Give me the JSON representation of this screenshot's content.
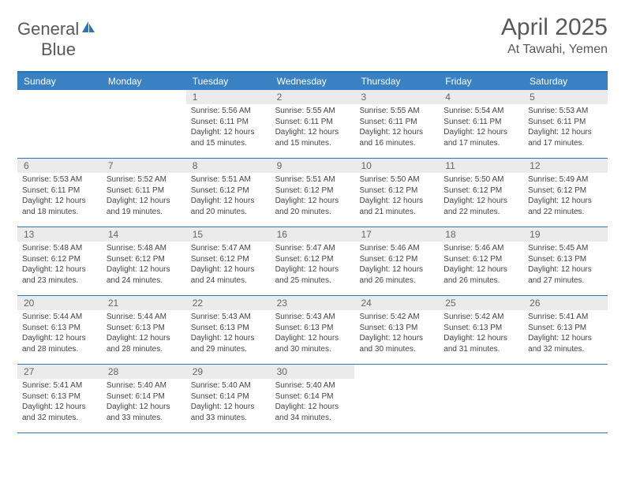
{
  "brand": {
    "text1": "General",
    "text2": "Blue",
    "accent": "#3a81c4",
    "gray": "#595959"
  },
  "title": "April 2025",
  "location": "At Tawahi, Yemen",
  "day_headers": [
    "Sunday",
    "Monday",
    "Tuesday",
    "Wednesday",
    "Thursday",
    "Friday",
    "Saturday"
  ],
  "header_bg": "#3a81c4",
  "border_color": "#2e75b6",
  "daynum_bg": "#ebebeb",
  "weeks": [
    [
      {
        "n": "",
        "lines": []
      },
      {
        "n": "",
        "lines": []
      },
      {
        "n": "1",
        "lines": [
          "Sunrise: 5:56 AM",
          "Sunset: 6:11 PM",
          "Daylight: 12 hours and 15 minutes."
        ]
      },
      {
        "n": "2",
        "lines": [
          "Sunrise: 5:55 AM",
          "Sunset: 6:11 PM",
          "Daylight: 12 hours and 15 minutes."
        ]
      },
      {
        "n": "3",
        "lines": [
          "Sunrise: 5:55 AM",
          "Sunset: 6:11 PM",
          "Daylight: 12 hours and 16 minutes."
        ]
      },
      {
        "n": "4",
        "lines": [
          "Sunrise: 5:54 AM",
          "Sunset: 6:11 PM",
          "Daylight: 12 hours and 17 minutes."
        ]
      },
      {
        "n": "5",
        "lines": [
          "Sunrise: 5:53 AM",
          "Sunset: 6:11 PM",
          "Daylight: 12 hours and 17 minutes."
        ]
      }
    ],
    [
      {
        "n": "6",
        "lines": [
          "Sunrise: 5:53 AM",
          "Sunset: 6:11 PM",
          "Daylight: 12 hours and 18 minutes."
        ]
      },
      {
        "n": "7",
        "lines": [
          "Sunrise: 5:52 AM",
          "Sunset: 6:11 PM",
          "Daylight: 12 hours and 19 minutes."
        ]
      },
      {
        "n": "8",
        "lines": [
          "Sunrise: 5:51 AM",
          "Sunset: 6:12 PM",
          "Daylight: 12 hours and 20 minutes."
        ]
      },
      {
        "n": "9",
        "lines": [
          "Sunrise: 5:51 AM",
          "Sunset: 6:12 PM",
          "Daylight: 12 hours and 20 minutes."
        ]
      },
      {
        "n": "10",
        "lines": [
          "Sunrise: 5:50 AM",
          "Sunset: 6:12 PM",
          "Daylight: 12 hours and 21 minutes."
        ]
      },
      {
        "n": "11",
        "lines": [
          "Sunrise: 5:50 AM",
          "Sunset: 6:12 PM",
          "Daylight: 12 hours and 22 minutes."
        ]
      },
      {
        "n": "12",
        "lines": [
          "Sunrise: 5:49 AM",
          "Sunset: 6:12 PM",
          "Daylight: 12 hours and 22 minutes."
        ]
      }
    ],
    [
      {
        "n": "13",
        "lines": [
          "Sunrise: 5:48 AM",
          "Sunset: 6:12 PM",
          "Daylight: 12 hours and 23 minutes."
        ]
      },
      {
        "n": "14",
        "lines": [
          "Sunrise: 5:48 AM",
          "Sunset: 6:12 PM",
          "Daylight: 12 hours and 24 minutes."
        ]
      },
      {
        "n": "15",
        "lines": [
          "Sunrise: 5:47 AM",
          "Sunset: 6:12 PM",
          "Daylight: 12 hours and 24 minutes."
        ]
      },
      {
        "n": "16",
        "lines": [
          "Sunrise: 5:47 AM",
          "Sunset: 6:12 PM",
          "Daylight: 12 hours and 25 minutes."
        ]
      },
      {
        "n": "17",
        "lines": [
          "Sunrise: 5:46 AM",
          "Sunset: 6:12 PM",
          "Daylight: 12 hours and 26 minutes."
        ]
      },
      {
        "n": "18",
        "lines": [
          "Sunrise: 5:46 AM",
          "Sunset: 6:12 PM",
          "Daylight: 12 hours and 26 minutes."
        ]
      },
      {
        "n": "19",
        "lines": [
          "Sunrise: 5:45 AM",
          "Sunset: 6:13 PM",
          "Daylight: 12 hours and 27 minutes."
        ]
      }
    ],
    [
      {
        "n": "20",
        "lines": [
          "Sunrise: 5:44 AM",
          "Sunset: 6:13 PM",
          "Daylight: 12 hours and 28 minutes."
        ]
      },
      {
        "n": "21",
        "lines": [
          "Sunrise: 5:44 AM",
          "Sunset: 6:13 PM",
          "Daylight: 12 hours and 28 minutes."
        ]
      },
      {
        "n": "22",
        "lines": [
          "Sunrise: 5:43 AM",
          "Sunset: 6:13 PM",
          "Daylight: 12 hours and 29 minutes."
        ]
      },
      {
        "n": "23",
        "lines": [
          "Sunrise: 5:43 AM",
          "Sunset: 6:13 PM",
          "Daylight: 12 hours and 30 minutes."
        ]
      },
      {
        "n": "24",
        "lines": [
          "Sunrise: 5:42 AM",
          "Sunset: 6:13 PM",
          "Daylight: 12 hours and 30 minutes."
        ]
      },
      {
        "n": "25",
        "lines": [
          "Sunrise: 5:42 AM",
          "Sunset: 6:13 PM",
          "Daylight: 12 hours and 31 minutes."
        ]
      },
      {
        "n": "26",
        "lines": [
          "Sunrise: 5:41 AM",
          "Sunset: 6:13 PM",
          "Daylight: 12 hours and 32 minutes."
        ]
      }
    ],
    [
      {
        "n": "27",
        "lines": [
          "Sunrise: 5:41 AM",
          "Sunset: 6:13 PM",
          "Daylight: 12 hours and 32 minutes."
        ]
      },
      {
        "n": "28",
        "lines": [
          "Sunrise: 5:40 AM",
          "Sunset: 6:14 PM",
          "Daylight: 12 hours and 33 minutes."
        ]
      },
      {
        "n": "29",
        "lines": [
          "Sunrise: 5:40 AM",
          "Sunset: 6:14 PM",
          "Daylight: 12 hours and 33 minutes."
        ]
      },
      {
        "n": "30",
        "lines": [
          "Sunrise: 5:40 AM",
          "Sunset: 6:14 PM",
          "Daylight: 12 hours and 34 minutes."
        ]
      },
      {
        "n": "",
        "lines": []
      },
      {
        "n": "",
        "lines": []
      },
      {
        "n": "",
        "lines": []
      }
    ]
  ]
}
